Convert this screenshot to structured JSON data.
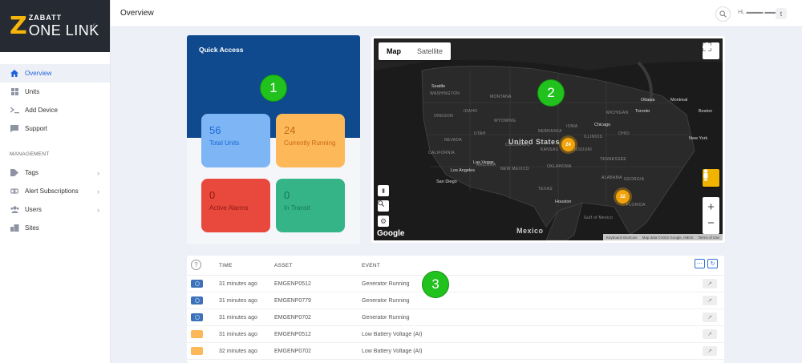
{
  "brand": {
    "line1": "ZABATT",
    "line2": "ONE LINK",
    "mark": "Z"
  },
  "sidebar": {
    "items": [
      {
        "label": "Overview",
        "icon": "home-icon"
      },
      {
        "label": "Units",
        "icon": "units-icon"
      },
      {
        "label": "Add Device",
        "icon": "terminal-icon"
      },
      {
        "label": "Support",
        "icon": "chat-icon"
      }
    ],
    "section": "MANAGEMENT",
    "management": [
      {
        "label": "Tags",
        "icon": "tag-icon"
      },
      {
        "label": "Alert Subscriptions",
        "icon": "link-icon"
      },
      {
        "label": "Users",
        "icon": "users-icon"
      },
      {
        "label": "Sites",
        "icon": "sites-icon"
      }
    ]
  },
  "header": {
    "title": "Overview",
    "greeting": "Hi, ▬▬▬ ▬▬▬",
    "avatar": "t"
  },
  "quick_access": {
    "title": "Quick Access",
    "tiles": [
      {
        "value": "56",
        "label": "Total Units"
      },
      {
        "value": "24",
        "label": "Currently Running"
      },
      {
        "value": "0",
        "label": "Active Alarms"
      },
      {
        "value": "0",
        "label": "In Transit"
      }
    ]
  },
  "markers": [
    "1",
    "2",
    "3"
  ],
  "map": {
    "tabs": [
      "Map",
      "Satellite"
    ],
    "clusters": [
      "24",
      "32"
    ],
    "country": "United States",
    "country2": "Mexico",
    "cities": [
      "Seattle",
      "Chicago",
      "Toronto",
      "Ottawa",
      "Montreal",
      "Boston",
      "New York",
      "Las Vegas",
      "Los Angeles",
      "San Diego",
      "Houston",
      "Gulf of Mexico"
    ],
    "states": [
      "WASHINGTON",
      "OREGON",
      "IDAHO",
      "MONTANA",
      "WYOMING",
      "NEVADA",
      "UTAH",
      "CALIFORNIA",
      "ARIZONA",
      "NEW MEXICO",
      "COLORADO",
      "TEXAS",
      "OKLAHOMA",
      "KANSAS",
      "NEBRASKA",
      "MISSOURI",
      "IOWA",
      "ILLINOIS",
      "OHIO",
      "TENNESSEE",
      "GEORGIA",
      "ALABAMA",
      "FLORIDA",
      "MICHIGAN"
    ],
    "footer": [
      "Keyboard shortcuts",
      "Map data ©2022 Google, INEGI",
      "Terms of Use"
    ],
    "google": "Google"
  },
  "events": {
    "columns": [
      "TIME",
      "ASSET",
      "EVENT"
    ],
    "rows": [
      {
        "status": "blue",
        "time": "31 minutes ago",
        "asset": "EMGENP0512",
        "event": "Generator Running"
      },
      {
        "status": "blue",
        "time": "31 minutes ago",
        "asset": "EMGENP0779",
        "event": "Generator Running"
      },
      {
        "status": "blue",
        "time": "31 minutes ago",
        "asset": "EMGENP0702",
        "event": "Generator Running"
      },
      {
        "status": "orange",
        "time": "31 minutes ago",
        "asset": "EMGENP0512",
        "event": "Low Battery Voltage (AI)"
      },
      {
        "status": "orange",
        "time": "32 minutes ago",
        "asset": "EMGENP0702",
        "event": "Low Battery Voltage (AI)"
      }
    ]
  },
  "colors": {
    "accent": "#1e63d8",
    "quick_access_bg": "#0f4a8f",
    "units": "#7eb5f5",
    "running": "#fdb85a",
    "alarms": "#e9493d",
    "transit": "#35b487",
    "marker": "#22c21e"
  }
}
